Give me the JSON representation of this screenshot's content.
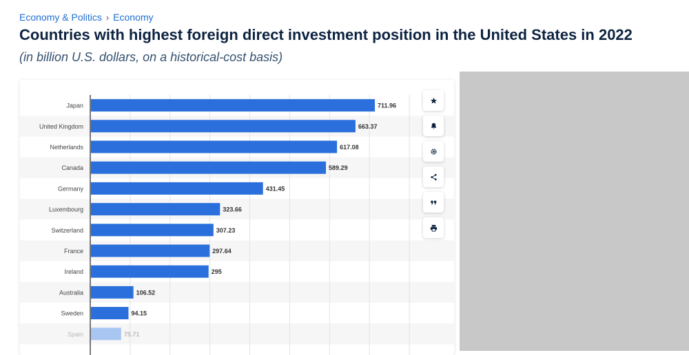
{
  "breadcrumb": {
    "items": [
      "Economy & Politics",
      "Economy"
    ],
    "separator": "›"
  },
  "header": {
    "title": "Countries with highest foreign direct investment position in the United States in 2022",
    "subtitle": "(in billion U.S. dollars, on a historical-cost basis)"
  },
  "toolbar": {
    "icons": [
      "star-icon",
      "bell-icon",
      "gear-icon",
      "share-icon",
      "quote-icon",
      "print-icon"
    ]
  },
  "colors": {
    "bar": "#2a6fdb",
    "title": "#0d2340",
    "link": "#1f6fd1",
    "grey_panel": "#c8c8c8"
  },
  "chart_data": {
    "type": "bar",
    "orientation": "horizontal",
    "categories": [
      "Japan",
      "United Kingdom",
      "Netherlands",
      "Canada",
      "Germany",
      "Luxembourg",
      "Switzerland",
      "France",
      "Ireland",
      "Australia",
      "Sweden",
      "Spain"
    ],
    "values": [
      711.96,
      663.37,
      617.08,
      589.29,
      431.45,
      323.66,
      307.23,
      297.64,
      295,
      106.52,
      94.15,
      75.71
    ],
    "value_labels": [
      "711.96",
      "663.37",
      "617.08",
      "589.29",
      "431.45",
      "323.66",
      "307.23",
      "297.64",
      "295",
      "106.52",
      "94.15",
      "75.71"
    ],
    "title": "Countries with highest foreign direct investment position in the United States in 2022",
    "subtitle": "(in billion U.S. dollars, on a historical-cost basis)",
    "xlabel": "",
    "ylabel": "",
    "xlim": [
      0,
      800
    ],
    "grid": true,
    "legend": "none"
  }
}
